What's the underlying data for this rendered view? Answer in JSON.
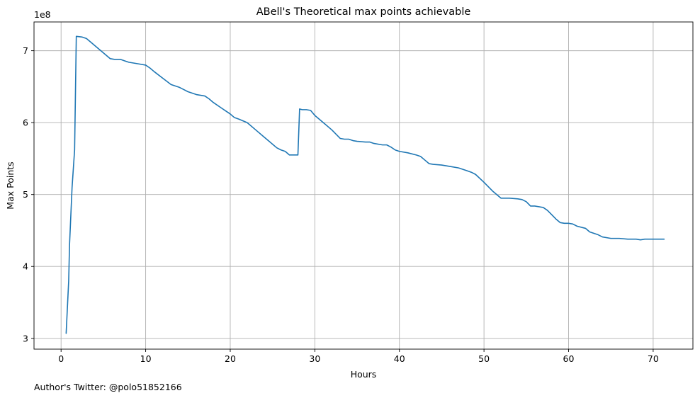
{
  "chart_data": {
    "type": "line",
    "title": "ABell's Theoretical max points achievable",
    "xlabel": "Hours",
    "ylabel": "Max Points",
    "y_offset_label": "1e8",
    "footer_text": "Author's Twitter: @polo51852166",
    "xlim": [
      -3.2,
      74.7
    ],
    "ylim": [
      2.85,
      7.4
    ],
    "x_ticks": [
      0,
      10,
      20,
      30,
      40,
      50,
      60,
      70
    ],
    "y_ticks": [
      3,
      4,
      5,
      6,
      7
    ],
    "grid": true,
    "colors": {
      "line": "#1f77b4",
      "grid": "#b0b0b0"
    },
    "series": [
      {
        "x": [
          0.6,
          0.9,
          1.0,
          1.3,
          1.6,
          1.8,
          2.5,
          3.0,
          4.0,
          5.0,
          5.8,
          6.3,
          7.0,
          7.5,
          8.0,
          8.5,
          9.0,
          10.0,
          10.5,
          11.0,
          12.0,
          13.0,
          14.0,
          14.5,
          15.0,
          15.5,
          16.0,
          17.0,
          17.5,
          18.0,
          19.0,
          19.5,
          20.0,
          20.5,
          21.0,
          22.0,
          23.0,
          24.0,
          25.0,
          25.5,
          26.0,
          26.5,
          27.0,
          27.5,
          28.0,
          28.2,
          28.5,
          29.0,
          29.5,
          30.0,
          31.0,
          32.0,
          33.0,
          33.5,
          34.0,
          34.5,
          35.0,
          36.0,
          36.5,
          37.0,
          38.0,
          38.5,
          39.0,
          39.5,
          40.0,
          41.0,
          42.0,
          42.5,
          43.0,
          43.5,
          44.0,
          45.0,
          46.0,
          47.0,
          48.0,
          48.5,
          49.0,
          50.0,
          51.0,
          52.0,
          53.0,
          54.0,
          54.5,
          55.0,
          55.5,
          56.0,
          57.0,
          57.5,
          58.0,
          58.5,
          59.0,
          59.5,
          60.0,
          60.5,
          61.0,
          62.0,
          62.5,
          63.0,
          63.5,
          64.0,
          65.0,
          66.0,
          67.0,
          68.0,
          68.5,
          69.0,
          69.5,
          70.0,
          70.5,
          71.0,
          71.3
        ],
        "y": [
          3.07,
          3.8,
          4.3,
          5.1,
          5.62,
          7.2,
          7.19,
          7.17,
          7.07,
          6.97,
          6.89,
          6.88,
          6.88,
          6.86,
          6.84,
          6.83,
          6.82,
          6.8,
          6.76,
          6.71,
          6.62,
          6.53,
          6.49,
          6.46,
          6.43,
          6.41,
          6.39,
          6.37,
          6.33,
          6.28,
          6.2,
          6.16,
          6.12,
          6.07,
          6.05,
          6.0,
          5.9,
          5.8,
          5.7,
          5.65,
          5.62,
          5.6,
          5.55,
          5.55,
          5.55,
          6.19,
          6.18,
          6.18,
          6.17,
          6.1,
          6.0,
          5.9,
          5.78,
          5.77,
          5.77,
          5.75,
          5.74,
          5.73,
          5.73,
          5.71,
          5.69,
          5.69,
          5.66,
          5.62,
          5.6,
          5.58,
          5.55,
          5.53,
          5.48,
          5.43,
          5.42,
          5.41,
          5.39,
          5.37,
          5.33,
          5.31,
          5.28,
          5.17,
          5.05,
          4.95,
          4.95,
          4.94,
          4.93,
          4.9,
          4.84,
          4.84,
          4.82,
          4.78,
          4.72,
          4.66,
          4.61,
          4.6,
          4.6,
          4.59,
          4.56,
          4.53,
          4.48,
          4.46,
          4.44,
          4.41,
          4.39,
          4.39,
          4.38,
          4.38,
          4.37,
          4.38,
          4.38,
          4.38,
          4.38,
          4.38,
          4.38
        ]
      }
    ]
  }
}
